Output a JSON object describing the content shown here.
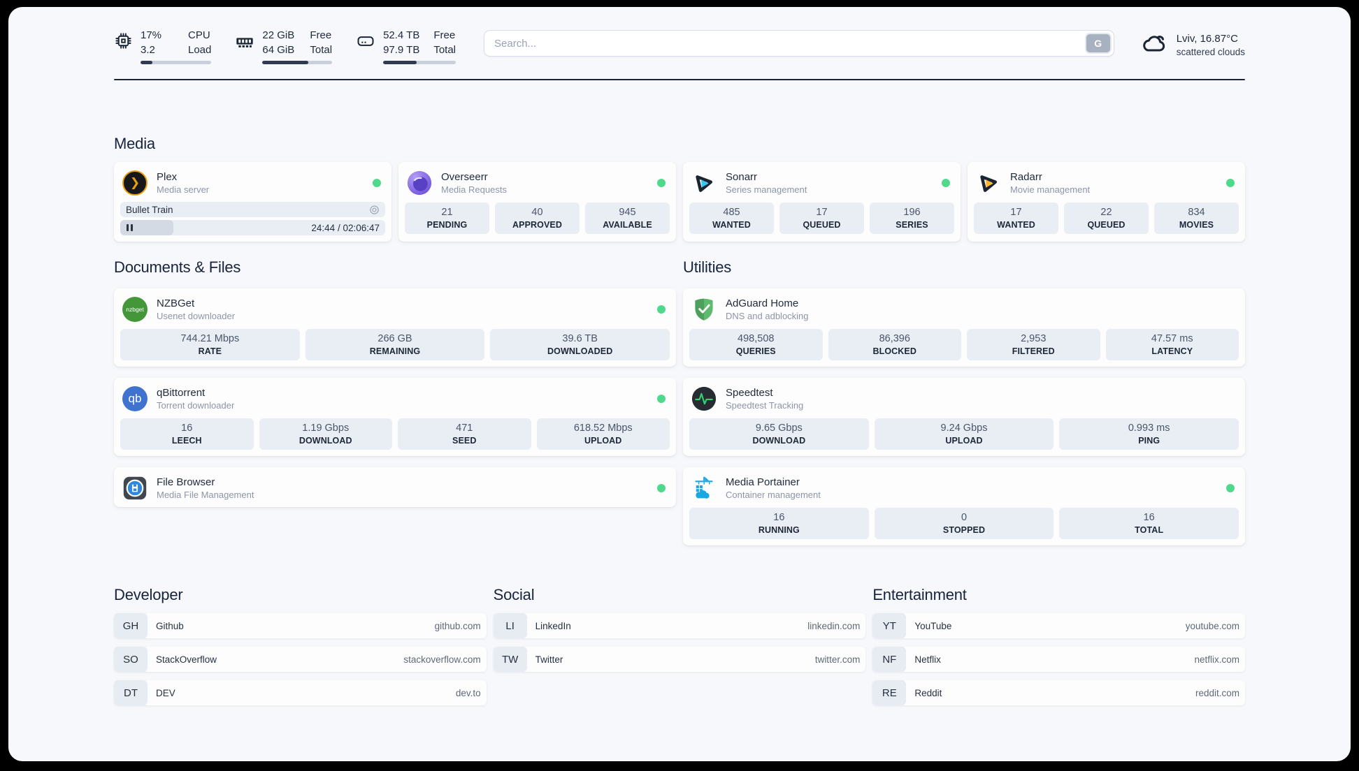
{
  "topbar": {
    "metrics": [
      {
        "id": "cpu",
        "values": [
          "17%",
          "3.2"
        ],
        "labels": [
          "CPU",
          "Load"
        ],
        "progress": 17
      },
      {
        "id": "memory",
        "values": [
          "22 GiB",
          "64 GiB"
        ],
        "labels": [
          "Free",
          "Total"
        ],
        "progress": 66
      },
      {
        "id": "disk",
        "values": [
          "52.4 TB",
          "97.9 TB"
        ],
        "labels": [
          "Free",
          "Total"
        ],
        "progress": 46
      }
    ],
    "search": {
      "placeholder": "Search...",
      "engine_button": "G"
    },
    "weather": {
      "headline": "Lviv, 16.87°C",
      "condition": "scattered clouds"
    }
  },
  "sections": {
    "media": "Media",
    "documents": "Documents & Files",
    "utilities": "Utilities"
  },
  "apps": {
    "plex": {
      "name": "Plex",
      "subtitle": "Media server",
      "now_playing": "Bullet Train",
      "elapsed": "24:44 / 02:06:47",
      "progress": 20
    },
    "overseerr": {
      "name": "Overseerr",
      "subtitle": "Media Requests",
      "stats": [
        {
          "value": "21",
          "label": "PENDING"
        },
        {
          "value": "40",
          "label": "APPROVED"
        },
        {
          "value": "945",
          "label": "AVAILABLE"
        }
      ]
    },
    "sonarr": {
      "name": "Sonarr",
      "subtitle": "Series management",
      "stats": [
        {
          "value": "485",
          "label": "WANTED"
        },
        {
          "value": "17",
          "label": "QUEUED"
        },
        {
          "value": "196",
          "label": "SERIES"
        }
      ]
    },
    "radarr": {
      "name": "Radarr",
      "subtitle": "Movie management",
      "stats": [
        {
          "value": "17",
          "label": "WANTED"
        },
        {
          "value": "22",
          "label": "QUEUED"
        },
        {
          "value": "834",
          "label": "MOVIES"
        }
      ]
    },
    "nzbget": {
      "name": "NZBGet",
      "subtitle": "Usenet downloader",
      "icon_text": "nzbget",
      "stats": [
        {
          "value": "744.21 Mbps",
          "label": "RATE"
        },
        {
          "value": "266 GB",
          "label": "REMAINING"
        },
        {
          "value": "39.6 TB",
          "label": "DOWNLOADED"
        }
      ]
    },
    "qbittorrent": {
      "name": "qBittorrent",
      "subtitle": "Torrent downloader",
      "icon_text": "qb",
      "stats": [
        {
          "value": "16",
          "label": "LEECH"
        },
        {
          "value": "1.19 Gbps",
          "label": "DOWNLOAD"
        },
        {
          "value": "471",
          "label": "SEED"
        },
        {
          "value": "618.52 Mbps",
          "label": "UPLOAD"
        }
      ]
    },
    "filebrowser": {
      "name": "File Browser",
      "subtitle": "Media File Management"
    },
    "adguard": {
      "name": "AdGuard Home",
      "subtitle": "DNS and adblocking",
      "stats": [
        {
          "value": "498,508",
          "label": "QUERIES"
        },
        {
          "value": "86,396",
          "label": "BLOCKED"
        },
        {
          "value": "2,953",
          "label": "FILTERED"
        },
        {
          "value": "47.57 ms",
          "label": "LATENCY"
        }
      ]
    },
    "speedtest": {
      "name": "Speedtest",
      "subtitle": "Speedtest Tracking",
      "stats": [
        {
          "value": "9.65 Gbps",
          "label": "DOWNLOAD"
        },
        {
          "value": "9.24 Gbps",
          "label": "UPLOAD"
        },
        {
          "value": "0.993 ms",
          "label": "PING"
        }
      ]
    },
    "portainer": {
      "name": "Media Portainer",
      "subtitle": "Container management",
      "stats": [
        {
          "value": "16",
          "label": "RUNNING"
        },
        {
          "value": "0",
          "label": "STOPPED"
        },
        {
          "value": "16",
          "label": "TOTAL"
        }
      ]
    }
  },
  "links": {
    "developer": {
      "title": "Developer",
      "items": [
        {
          "abbr": "GH",
          "name": "Github",
          "url": "github.com"
        },
        {
          "abbr": "SO",
          "name": "StackOverflow",
          "url": "stackoverflow.com"
        },
        {
          "abbr": "DT",
          "name": "DEV",
          "url": "dev.to"
        }
      ]
    },
    "social": {
      "title": "Social",
      "items": [
        {
          "abbr": "LI",
          "name": "LinkedIn",
          "url": "linkedin.com"
        },
        {
          "abbr": "TW",
          "name": "Twitter",
          "url": "twitter.com"
        }
      ]
    },
    "entertainment": {
      "title": "Entertainment",
      "items": [
        {
          "abbr": "YT",
          "name": "YouTube",
          "url": "youtube.com"
        },
        {
          "abbr": "NF",
          "name": "Netflix",
          "url": "netflix.com"
        },
        {
          "abbr": "RE",
          "name": "Reddit",
          "url": "reddit.com"
        }
      ]
    }
  },
  "colors": {
    "accent_green": "#4fd98b",
    "progress_fill": "#2f3a52"
  }
}
